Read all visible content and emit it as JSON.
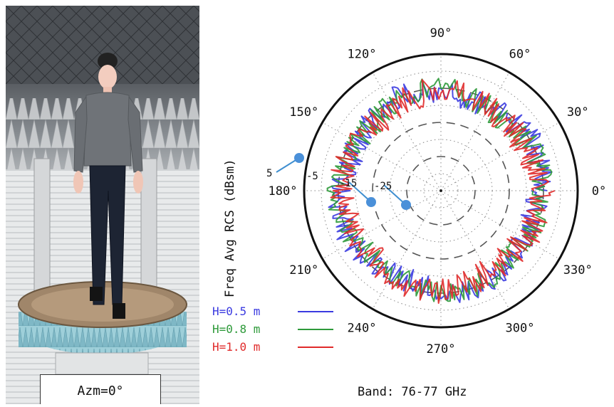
{
  "photo": {
    "azm_label": "Azm=0°"
  },
  "chart_data": {
    "type": "polar-line",
    "ylabel": "Freq Avg RCS (dBsm)",
    "band_label": "Band: 76-77 GHz",
    "angle_ticks": [
      {
        "deg": 0,
        "label": "0°"
      },
      {
        "deg": 30,
        "label": "30°"
      },
      {
        "deg": 60,
        "label": "60°"
      },
      {
        "deg": 90,
        "label": "90°"
      },
      {
        "deg": 120,
        "label": "120°"
      },
      {
        "deg": 150,
        "label": "150°"
      },
      {
        "deg": 180,
        "label": "180°"
      },
      {
        "deg": 210,
        "label": "210°"
      },
      {
        "deg": 240,
        "label": "240°"
      },
      {
        "deg": 270,
        "label": "270°"
      },
      {
        "deg": 300,
        "label": "300°"
      },
      {
        "deg": 330,
        "label": "330°"
      }
    ],
    "radial_range": [
      -35,
      5
    ],
    "radial_ticks": [
      {
        "value": 5,
        "label": "5"
      },
      {
        "value": -5,
        "label": "-5"
      },
      {
        "value": -15,
        "label": "-15"
      },
      {
        "value": -25,
        "label": "-25"
      }
    ],
    "series": [
      {
        "name": "H=0.5 m",
        "color": "#3a3ae0",
        "mean": -6,
        "amplitude": 3.5
      },
      {
        "name": "H=0.8 m",
        "color": "#2e9a3a",
        "mean": -6,
        "amplitude": 3.5
      },
      {
        "name": "H=1.0 m",
        "color": "#e02a2a",
        "mean": -6.5,
        "amplitude": 4
      }
    ]
  }
}
